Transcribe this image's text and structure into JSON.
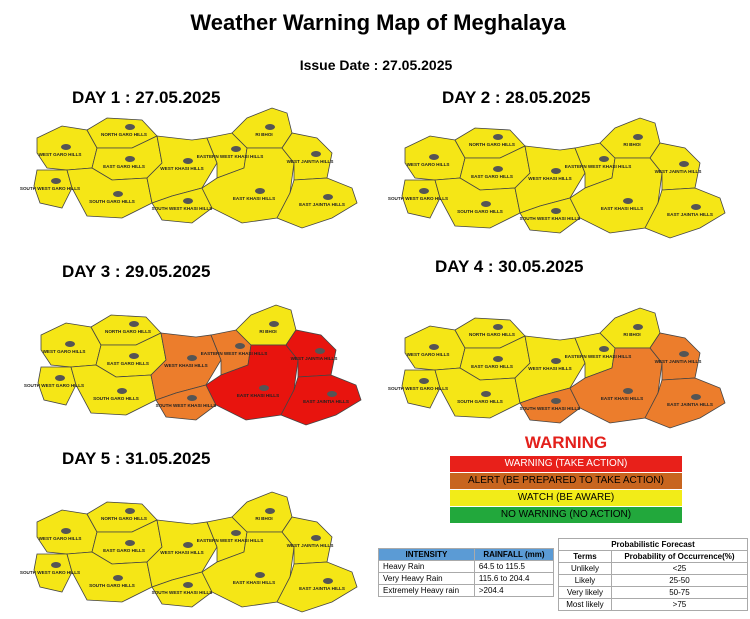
{
  "header": {
    "title": "Weather Warning Map of Meghalaya",
    "issue_date": "Issue Date : 27.05.2025"
  },
  "maps": [
    {
      "title": "DAY 1 : 27.05.2025",
      "districts": [
        "WEST GARO HILLS",
        "SOUTH WEST GARO HILLS",
        "NORTH GARO HILLS",
        "EAST GARO HILLS",
        "SOUTH GARO HILLS",
        "WEST KHASI HILLS",
        "SOUTH WEST KHASI HILLS",
        "EASTERN WEST KHASI HILLS",
        "RI BHOI",
        "EAST KHASI HILLS",
        "WEST JAINTIA HILLS",
        "EAST JAINTIA HILLS"
      ],
      "colors": [
        "#f5e616",
        "#f5e616",
        "#f5e616",
        "#f5e616",
        "#f5e616",
        "#f5e616",
        "#f5e616",
        "#f5e616",
        "#f5e616",
        "#f5e616",
        "#f5e616",
        "#f5e616"
      ]
    },
    {
      "title": "DAY 2 : 28.05.2025",
      "districts": [
        "WEST GARO HILLS",
        "SOUTH WEST GARO HILLS",
        "NORTH GARO HILLS",
        "EAST GARO HILLS",
        "SOUTH GARO HILLS",
        "WEST KHASI HILLS",
        "SOUTH WEST KHASI HILLS",
        "EASTERN WEST KHASI HILLS",
        "RI BHOI",
        "EAST KHASI HILLS",
        "WEST JAINTIA HILLS",
        "EAST JAINTIA HILLS"
      ],
      "colors": [
        "#f5e616",
        "#f5e616",
        "#f5e616",
        "#f5e616",
        "#f5e616",
        "#f5e616",
        "#f5e616",
        "#f5e616",
        "#f5e616",
        "#f5e616",
        "#f5e616",
        "#f5e616"
      ]
    },
    {
      "title": "DAY 3 :  29.05.2025",
      "districts": [
        "WEST GARO HILLS",
        "SOUTH WEST GARO HILLS",
        "NORTH GARO HILLS",
        "EAST GARO HILLS",
        "SOUTH GARO HILLS",
        "WEST KHASI HILLS",
        "SOUTH WEST KHASI HILLS",
        "EASTERN WEST KHASI HILLS",
        "RI BHOI",
        "EAST KHASI HILLS",
        "WEST JAINTIA HILLS",
        "EAST JAINTIA HILLS"
      ],
      "colors": [
        "#f5e616",
        "#f5e616",
        "#f5e616",
        "#f5e616",
        "#f5e616",
        "#ec7d2c",
        "#ec7d2c",
        "#ec7d2c",
        "#f5e616",
        "#e8140e",
        "#e8140e",
        "#e8140e"
      ]
    },
    {
      "title": "DAY 4 :  30.05.2025",
      "districts": [
        "WEST GARO HILLS",
        "SOUTH WEST GARO HILLS",
        "NORTH GARO HILLS",
        "EAST GARO HILLS",
        "SOUTH GARO HILLS",
        "WEST KHASI HILLS",
        "SOUTH WEST KHASI HILLS",
        "EASTERN WEST KHASI HILLS",
        "RI BHOI",
        "EAST KHASI HILLS",
        "WEST JAINTIA HILLS",
        "EAST JAINTIA HILLS"
      ],
      "colors": [
        "#f5e616",
        "#f5e616",
        "#f5e616",
        "#f5e616",
        "#f5e616",
        "#f5e616",
        "#ec7d2c",
        "#f5e616",
        "#f5e616",
        "#ec7d2c",
        "#ec7d2c",
        "#ec7d2c"
      ]
    },
    {
      "title": "DAY 5 : 31.05.2025",
      "districts": [
        "WEST GARO HILLS",
        "SOUTH WEST GARO HILLS",
        "NORTH GARO HILLS",
        "EAST GARO HILLS",
        "SOUTH GARO HILLS",
        "WEST KHASI HILLS",
        "SOUTH WEST KHASI HILLS",
        "EASTERN WEST KHASI HILLS",
        "RI BHOI",
        "EAST KHASI HILLS",
        "WEST JAINTIA HILLS",
        "EAST JAINTIA HILLS"
      ],
      "colors": [
        "#f5e616",
        "#f5e616",
        "#f5e616",
        "#f5e616",
        "#f5e616",
        "#f5e616",
        "#f5e616",
        "#f5e616",
        "#f5e616",
        "#f5e616",
        "#f5e616",
        "#f5e616"
      ]
    }
  ],
  "legend": {
    "title": "WARNING",
    "items": [
      {
        "label": "WARNING (TAKE ACTION)",
        "color": "#e8201a",
        "text_color": "#ffffff"
      },
      {
        "label": "ALERT (BE PREPARED TO TAKE ACTION)",
        "color": "#c8651f",
        "text_color": "#000000"
      },
      {
        "label": "WATCH (BE AWARE)",
        "color": "#f2ec18",
        "text_color": "#000000"
      },
      {
        "label": "NO WARNING (NO ACTION)",
        "color": "#22a83c",
        "text_color": "#000000"
      }
    ]
  },
  "intensity_table": {
    "headers": [
      "INTENSITY",
      "RAINFALL (mm)"
    ],
    "rows": [
      [
        "Heavy Rain",
        "64.5 to 115.5"
      ],
      [
        "Very Heavy Rain",
        "115.6 to 204.4"
      ],
      [
        "Extremely Heavy rain",
        ">204.4"
      ]
    ]
  },
  "probability_table": {
    "title": "Probabilistic Forecast",
    "headers": [
      "Terms",
      "Probability of Occurrence(%)"
    ],
    "rows": [
      [
        "Unlikely",
        "<25"
      ],
      [
        "Likely",
        "25-50"
      ],
      [
        "Very likely",
        "50-75"
      ],
      [
        "Most likely",
        ">75"
      ]
    ]
  }
}
